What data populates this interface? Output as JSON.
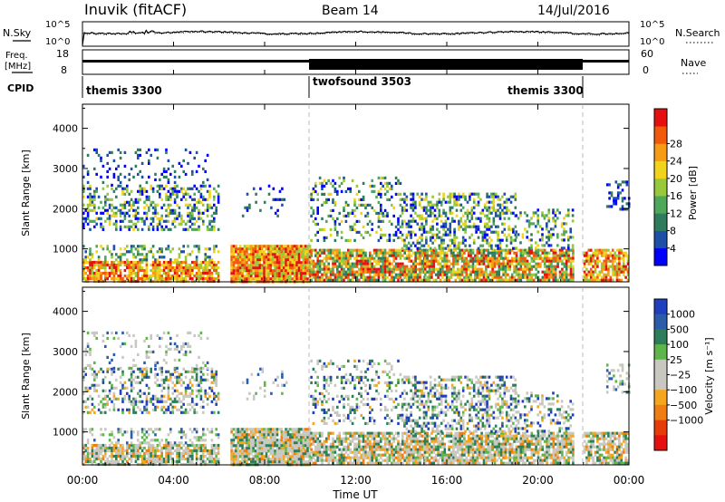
{
  "header": {
    "station": "Inuvik (fitACF)",
    "beam": "Beam 14",
    "date": "14/Jul/2016"
  },
  "noise_panel": {
    "left_label": "N.Sky",
    "right_label": "N.Search",
    "left_ticks": [
      "10^5",
      "10^0"
    ],
    "right_ticks": [
      "10^5",
      "10^0"
    ]
  },
  "freq_panel": {
    "left_label_top": "Freq.",
    "left_label_unit": "[MHz]",
    "left_ticks": [
      "18",
      "8"
    ],
    "right_label": "Nave",
    "right_ticks": [
      "60",
      "0"
    ]
  },
  "cpid": {
    "label": "CPID",
    "segments": [
      {
        "name": "themis 3300",
        "start_h": 0,
        "end_h": 10
      },
      {
        "name": "twofsound 3503",
        "start_h": 10,
        "end_h": 22
      },
      {
        "name": "themis 3300",
        "start_h": 22,
        "end_h": 24
      }
    ]
  },
  "x_axis": {
    "label": "Time UT",
    "ticks": [
      "00:00",
      "04:00",
      "08:00",
      "12:00",
      "16:00",
      "20:00",
      "00:00"
    ]
  },
  "power_panel": {
    "ylabel": "Slant Range [km]",
    "yticks": [
      "1000",
      "2000",
      "3000",
      "4000"
    ],
    "colorbar_label": "Power [dB]",
    "colorbar_ticks": [
      "4",
      "8",
      "12",
      "16",
      "20",
      "24",
      "28"
    ],
    "colors": [
      "#0000ff",
      "#1d4fa8",
      "#2f7c5c",
      "#4fa75a",
      "#98c93c",
      "#f2d31c",
      "#f59b14",
      "#f05a0a",
      "#e51010"
    ]
  },
  "velocity_panel": {
    "ylabel": "Slant Range [km]",
    "yticks": [
      "1000",
      "2000",
      "3000",
      "4000"
    ],
    "colorbar_label": "Velocity [m s⁻¹]",
    "colorbar_ticks": [
      "1000",
      "500",
      "100",
      "25",
      "−25",
      "−100",
      "−500",
      "−1000"
    ],
    "colors": [
      "#1f3fbf",
      "#2a5caa",
      "#2e7d5a",
      "#5fb44a",
      "#c8c8c0",
      "#c8c8c0",
      "#f5a51e",
      "#f07d14",
      "#e53c0a",
      "#e51010"
    ]
  },
  "chart_data": [
    {
      "type": "line",
      "title": "Inuvik (fitACF)",
      "series": [
        {
          "name": "N.Sky"
        },
        {
          "name": "N.Search"
        }
      ],
      "x": [
        0,
        24
      ],
      "ylim_label": [
        "10^0",
        "10^5"
      ]
    },
    {
      "type": "line",
      "series": [
        {
          "name": "Freq."
        },
        {
          "name": "Nave"
        }
      ],
      "x_segments_h": [
        [
          0,
          10
        ],
        [
          10,
          22
        ],
        [
          22,
          24
        ]
      ],
      "ylim": [
        8,
        18
      ]
    },
    {
      "type": "heatmap",
      "xlabel": "Time UT",
      "ylabel": "Slant Range [km]",
      "xlim_h": [
        0,
        24
      ],
      "ylim_km": [
        180,
        4600
      ],
      "colorbar": "Power [dB]",
      "zticks": [
        4,
        8,
        12,
        16,
        20,
        24,
        28
      ],
      "echo_regions": [
        {
          "t": [
            0,
            6
          ],
          "range_km": [
            200,
            900
          ],
          "level": "high"
        },
        {
          "t": [
            6.5,
            24
          ],
          "range_km": [
            200,
            1100
          ],
          "level": "high"
        },
        {
          "t": [
            0,
            6
          ],
          "range_km": [
            1500,
            3500
          ],
          "level": "mixed"
        },
        {
          "t": [
            10,
            23
          ],
          "range_km": [
            1000,
            2800
          ],
          "level": "mixed"
        }
      ]
    },
    {
      "type": "heatmap",
      "xlabel": "Time UT",
      "ylabel": "Slant Range [km]",
      "xlim_h": [
        0,
        24
      ],
      "ylim_km": [
        180,
        4600
      ],
      "colorbar": "Velocity [m s⁻¹]",
      "zticks": [
        -1000,
        -500,
        -100,
        -25,
        25,
        100,
        500,
        1000
      ]
    }
  ]
}
